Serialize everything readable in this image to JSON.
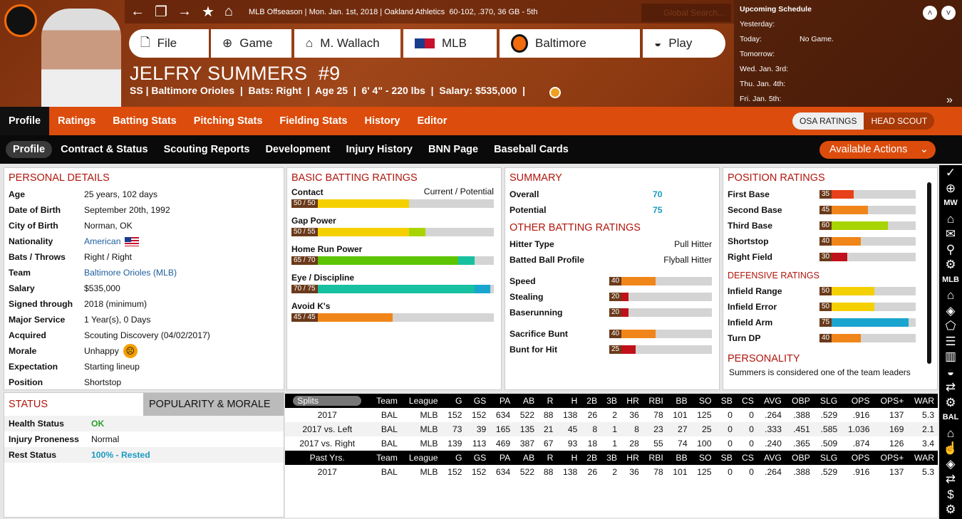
{
  "topbar": {
    "season": "MLB Offseason",
    "date": "Mon. Jan. 1st, 2018",
    "team": "Oakland Athletics",
    "record": "60-102, .370, 36 GB - 5th",
    "search_placeholder": "Global Search..."
  },
  "nav": [
    "File",
    "Game",
    "M. Wallach",
    "MLB",
    "Baltimore",
    "Play"
  ],
  "player": {
    "name": "JELFRY SUMMERS  #9",
    "subline": "SS | Baltimore Orioles  |  Bats: Right  |  Age 25  |  6' 4\" - 220 lbs  |  Salary: $535,000  |"
  },
  "schedule": {
    "title": "Upcoming Schedule",
    "rows": [
      {
        "d": "Yesterday:",
        "v": ""
      },
      {
        "d": "Today:",
        "v": "No Game."
      },
      {
        "d": "Tomorrow:",
        "v": ""
      },
      {
        "d": "Wed. Jan. 3rd:",
        "v": ""
      },
      {
        "d": "Thu. Jan. 4th:",
        "v": ""
      },
      {
        "d": "Fri. Jan. 5th:",
        "v": ""
      }
    ]
  },
  "tabs": [
    "Profile",
    "Ratings",
    "Batting Stats",
    "Pitching Stats",
    "Fielding Stats",
    "History",
    "Editor"
  ],
  "toggle": [
    "OSA RATINGS",
    "HEAD SCOUT"
  ],
  "subtabs": [
    "Profile",
    "Contract & Status",
    "Scouting Reports",
    "Development",
    "Injury History",
    "BNN Page",
    "Baseball Cards"
  ],
  "actions_label": "Available Actions",
  "personal": {
    "title": "PERSONAL DETAILS",
    "rows": [
      [
        "Age",
        "25 years, 102 days"
      ],
      [
        "Date of Birth",
        "September 20th, 1992"
      ],
      [
        "City of Birth",
        "Norman, OK"
      ],
      [
        "Nationality",
        "American"
      ],
      [
        "Bats / Throws",
        "Right / Right"
      ],
      [
        "Team",
        "Baltimore Orioles (MLB)"
      ],
      [
        "Salary",
        "$535,000"
      ],
      [
        "Signed through",
        "2018 (minimum)"
      ],
      [
        "Major Service",
        "1 Year(s), 0 Days"
      ],
      [
        "Acquired",
        "Scouting Discovery (04/02/2017)"
      ],
      [
        "Morale",
        "Unhappy"
      ],
      [
        "Expectation",
        "Starting lineup"
      ],
      [
        "Position",
        "Shortstop"
      ]
    ]
  },
  "batting": {
    "title": "BASIC BATTING RATINGS",
    "header_right": "Current / Potential",
    "rows": [
      {
        "name": "Contact",
        "cur": 50,
        "pot": 50,
        "label": "50 / 50"
      },
      {
        "name": "Gap Power",
        "cur": 50,
        "pot": 55,
        "label": "50 / 55"
      },
      {
        "name": "Home Run Power",
        "cur": 65,
        "pot": 70,
        "label": "65 / 70"
      },
      {
        "name": "Eye / Discipline",
        "cur": 70,
        "pot": 75,
        "label": "70 / 75"
      },
      {
        "name": "Avoid K's",
        "cur": 45,
        "pot": 45,
        "label": "45 / 45"
      }
    ]
  },
  "summary": {
    "title": "SUMMARY",
    "overall_label": "Overall",
    "overall": "70",
    "potential_label": "Potential",
    "potential": "75",
    "other_title": "OTHER BATTING RATINGS",
    "hitter_type_label": "Hitter Type",
    "hitter_type": "Pull Hitter",
    "profile_label": "Batted Ball Profile",
    "profile": "Flyball Hitter",
    "bars1": [
      {
        "name": "Speed",
        "v": 40,
        "label": "40"
      },
      {
        "name": "Stealing",
        "v": 20,
        "label": "20"
      },
      {
        "name": "Baserunning",
        "v": 20,
        "label": "20"
      }
    ],
    "bars2": [
      {
        "name": "Sacrifice Bunt",
        "v": 40,
        "label": "40"
      },
      {
        "name": "Bunt for Hit",
        "v": 25,
        "label": "25"
      }
    ]
  },
  "positions": {
    "title": "POSITION RATINGS",
    "rows": [
      {
        "name": "First Base",
        "v": 35,
        "label": "35"
      },
      {
        "name": "Second Base",
        "v": 45,
        "label": "45"
      },
      {
        "name": "Third Base",
        "v": 60,
        "label": "60"
      },
      {
        "name": "Shortstop",
        "v": 40,
        "label": "40"
      },
      {
        "name": "Right Field",
        "v": 30,
        "label": "30"
      }
    ],
    "def_title": "DEFENSIVE RATINGS",
    "def": [
      {
        "name": "Infield Range",
        "v": 50,
        "label": "50"
      },
      {
        "name": "Infield Error",
        "v": 50,
        "label": "50"
      },
      {
        "name": "Infield Arm",
        "v": 75,
        "label": "75"
      },
      {
        "name": "Turn DP",
        "v": 40,
        "label": "40"
      }
    ],
    "personality_title": "PERSONALITY",
    "personality": "Summers is considered one of the team leaders"
  },
  "status": {
    "tab1": "STATUS",
    "tab2": "POPULARITY & MORALE",
    "rows": [
      [
        "Health Status",
        "OK"
      ],
      [
        "Injury Proneness",
        "Normal"
      ],
      [
        "Rest Status",
        "100% - Rested"
      ]
    ]
  },
  "stats": {
    "cols": [
      "Team",
      "League",
      "G",
      "GS",
      "PA",
      "AB",
      "R",
      "H",
      "2B",
      "3B",
      "HR",
      "RBI",
      "BB",
      "SO",
      "SB",
      "CS",
      "AVG",
      "OBP",
      "SLG",
      "OPS",
      "OPS+",
      "WAR"
    ],
    "splits_label": "Splits",
    "past_label": "Past Yrs.",
    "splits": [
      [
        "2017",
        "BAL",
        "MLB",
        "152",
        "152",
        "634",
        "522",
        "88",
        "138",
        "26",
        "2",
        "36",
        "78",
        "101",
        "125",
        "0",
        "0",
        ".264",
        ".388",
        ".529",
        ".916",
        "137",
        "5.3"
      ],
      [
        "2017 vs. Left",
        "BAL",
        "MLB",
        "73",
        "39",
        "165",
        "135",
        "21",
        "45",
        "8",
        "1",
        "8",
        "23",
        "27",
        "25",
        "0",
        "0",
        ".333",
        ".451",
        ".585",
        "1.036",
        "169",
        "2.1"
      ],
      [
        "2017 vs. Right",
        "BAL",
        "MLB",
        "139",
        "113",
        "469",
        "387",
        "67",
        "93",
        "18",
        "1",
        "28",
        "55",
        "74",
        "100",
        "0",
        "0",
        ".240",
        ".365",
        ".509",
        ".874",
        "126",
        "3.4"
      ]
    ],
    "past": [
      [
        "2017",
        "BAL",
        "MLB",
        "152",
        "152",
        "634",
        "522",
        "88",
        "138",
        "26",
        "2",
        "36",
        "78",
        "101",
        "125",
        "0",
        "0",
        ".264",
        ".388",
        ".529",
        ".916",
        "137",
        "5.3"
      ]
    ]
  },
  "sidebar": [
    "MW",
    "MLB",
    "BAL"
  ],
  "colors": {
    "accent": "#dc4c0c",
    "title_red": "#b0160c",
    "link_blue": "#1f5fa0",
    "teal": "#1a9bc0",
    "green": "#2aa02a"
  }
}
